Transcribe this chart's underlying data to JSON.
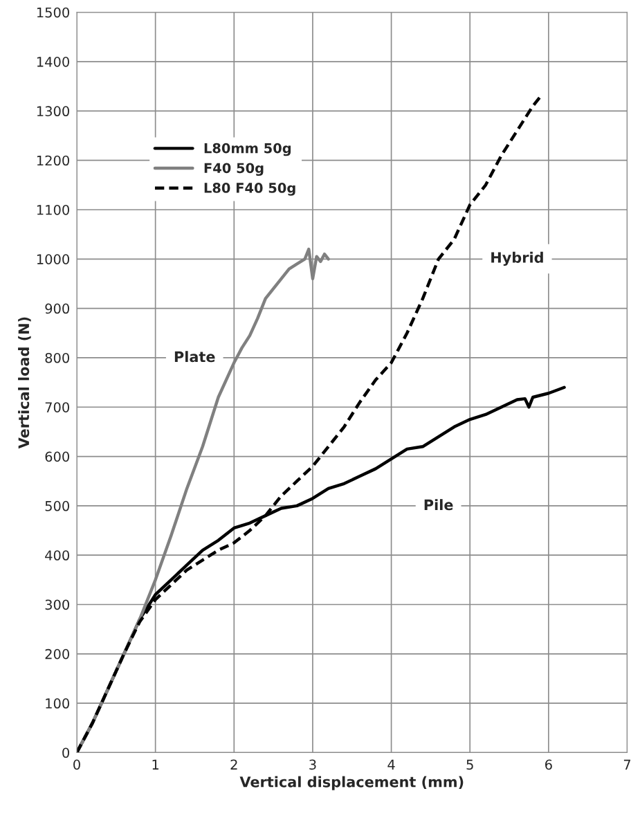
{
  "chart_data": {
    "type": "line",
    "xlabel": "Vertical displacement (mm)",
    "ylabel": "Vertical load (N)",
    "xlim": [
      0,
      7
    ],
    "xticks": [
      0,
      1,
      2,
      3,
      4,
      5,
      6,
      7
    ],
    "ylim": [
      0,
      1500
    ],
    "yticks": [
      0,
      100,
      200,
      300,
      400,
      500,
      600,
      700,
      800,
      900,
      1000,
      1100,
      1200,
      1300,
      1400,
      1500
    ],
    "grid": true,
    "legend": "top left",
    "marker": "none",
    "series": [
      {
        "name": "L80mm 50g",
        "color": "#000000",
        "line_style": "solid",
        "x": [
          0,
          0.2,
          0.4,
          0.6,
          0.8,
          1.0,
          1.2,
          1.4,
          1.6,
          1.8,
          2.0,
          2.2,
          2.4,
          2.6,
          2.8,
          3.0,
          3.2,
          3.4,
          3.6,
          3.8,
          4.0,
          4.2,
          4.4,
          4.6,
          4.8,
          5.0,
          5.2,
          5.4,
          5.6,
          5.7,
          5.75,
          5.8,
          6.0,
          6.2
        ],
        "values": [
          0,
          60,
          130,
          200,
          270,
          320,
          350,
          380,
          410,
          430,
          455,
          465,
          480,
          495,
          500,
          515,
          535,
          545,
          560,
          575,
          595,
          615,
          620,
          640,
          660,
          675,
          685,
          700,
          715,
          717,
          700,
          720,
          728,
          740
        ]
      },
      {
        "name": "F40 50g",
        "color": "#808080",
        "line_style": "solid",
        "x": [
          0,
          0.2,
          0.4,
          0.6,
          0.8,
          1.0,
          1.2,
          1.4,
          1.6,
          1.8,
          2.0,
          2.1,
          2.2,
          2.3,
          2.4,
          2.5,
          2.6,
          2.7,
          2.8,
          2.9,
          2.95,
          3.0,
          3.05,
          3.1,
          3.15,
          3.2
        ],
        "values": [
          0,
          60,
          130,
          200,
          270,
          350,
          440,
          535,
          620,
          720,
          790,
          820,
          845,
          880,
          920,
          940,
          960,
          980,
          990,
          1000,
          1020,
          960,
          1005,
          995,
          1010,
          1000
        ]
      },
      {
        "name": "L80 F40 50g",
        "color": "#000000",
        "line_style": "dashed",
        "x": [
          0,
          0.2,
          0.4,
          0.6,
          0.8,
          1.0,
          1.2,
          1.4,
          1.6,
          1.8,
          2.0,
          2.2,
          2.4,
          2.6,
          2.8,
          3.0,
          3.2,
          3.4,
          3.6,
          3.8,
          4.0,
          4.2,
          4.4,
          4.6,
          4.8,
          5.0,
          5.2,
          5.4,
          5.6,
          5.8,
          5.9
        ],
        "values": [
          0,
          60,
          130,
          200,
          265,
          310,
          340,
          370,
          390,
          410,
          425,
          450,
          480,
          520,
          550,
          580,
          620,
          660,
          710,
          755,
          790,
          850,
          920,
          1000,
          1040,
          1110,
          1150,
          1210,
          1260,
          1310,
          1330
        ]
      }
    ],
    "annotations": [
      "Plate",
      "Hybrid",
      "Pile"
    ]
  }
}
